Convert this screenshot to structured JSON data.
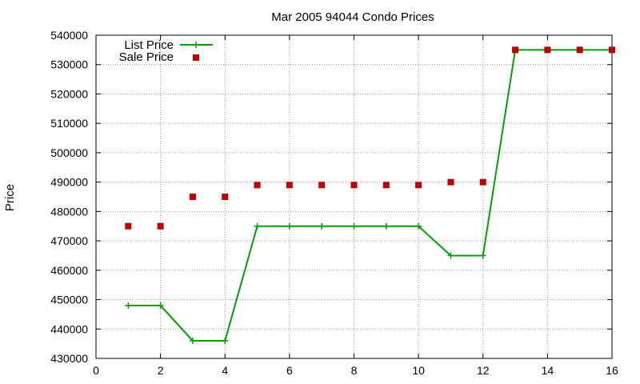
{
  "chart_data": {
    "type": "line",
    "title": "Mar 2005 94044 Condo Prices",
    "xlabel": "",
    "ylabel": "Price",
    "xlim": [
      0,
      16
    ],
    "ylim": [
      430000,
      540000
    ],
    "x_ticks": [
      "0",
      "2",
      "4",
      "6",
      "8",
      "10",
      "12",
      "14",
      "16"
    ],
    "y_ticks": [
      "430000",
      "440000",
      "450000",
      "460000",
      "470000",
      "480000",
      "490000",
      "500000",
      "510000",
      "520000",
      "530000",
      "540000"
    ],
    "grid": true,
    "legend_position": "top-left",
    "series": [
      {
        "name": "List Price",
        "style": "line+cross",
        "color": "#00a000",
        "x": [
          1,
          2,
          3,
          4,
          5,
          6,
          7,
          8,
          9,
          10,
          11,
          12,
          13,
          14,
          15,
          16
        ],
        "y": [
          448000,
          448000,
          436000,
          436000,
          475000,
          475000,
          475000,
          475000,
          475000,
          475000,
          465000,
          465000,
          535000,
          535000,
          535000,
          535000
        ]
      },
      {
        "name": "Sale Price",
        "style": "square",
        "color": "#c00000",
        "x": [
          1,
          2,
          3,
          4,
          5,
          6,
          7,
          8,
          9,
          10,
          11,
          12,
          13,
          14,
          15,
          16
        ],
        "y": [
          475000,
          475000,
          485000,
          485000,
          489000,
          489000,
          489000,
          489000,
          489000,
          489000,
          490000,
          490000,
          535000,
          535000,
          535000,
          535000
        ]
      }
    ]
  }
}
